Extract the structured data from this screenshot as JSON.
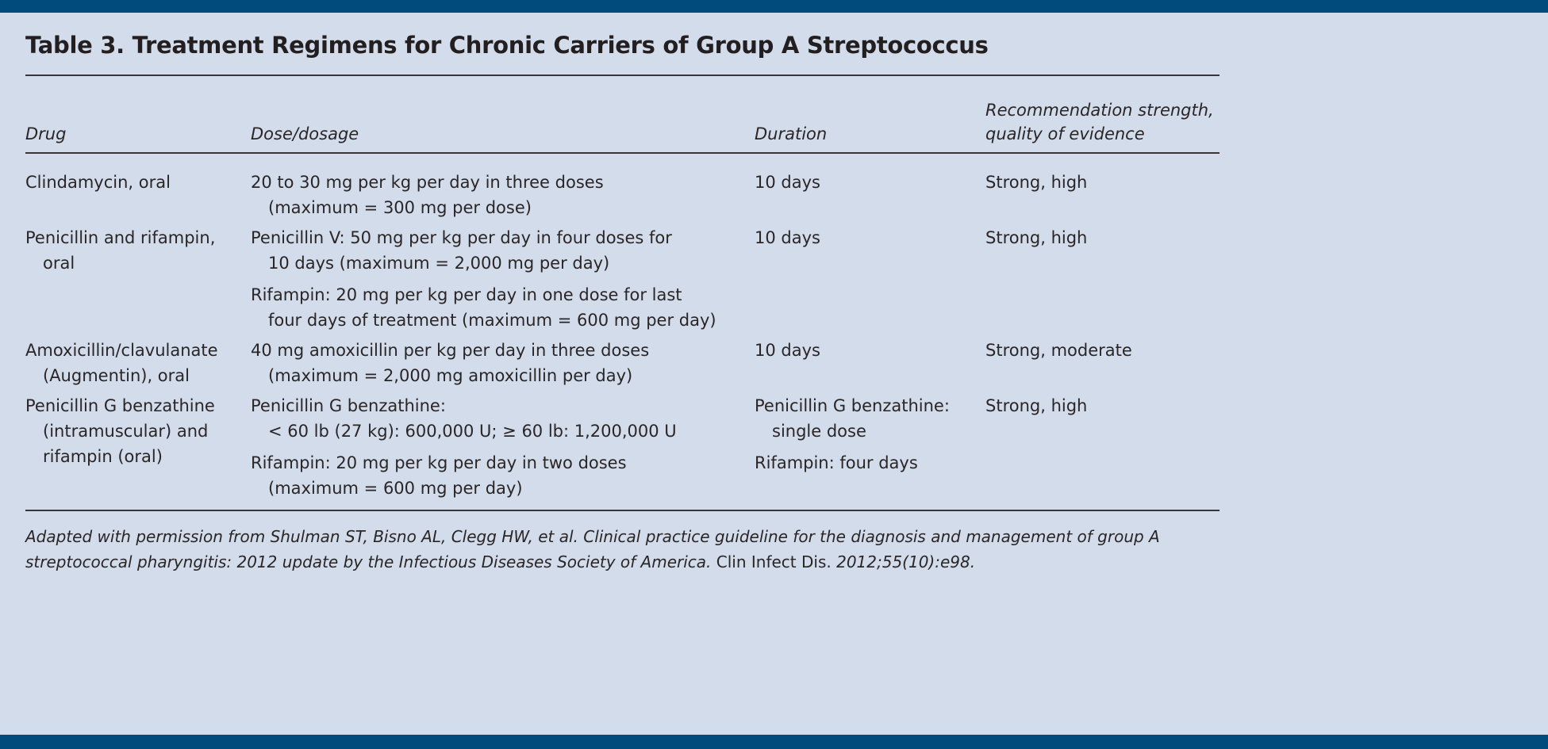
{
  "colors": {
    "band": "#004a7c",
    "background": "#d3dcea",
    "text": "#231f20"
  },
  "title": "Table 3. Treatment Regimens for Chronic Carriers of Group A Streptococcus",
  "headers": {
    "drug": "Drug",
    "dose": "Dose/dosage",
    "duration": "Duration",
    "strength_line1": "Recommendation strength,",
    "strength_line2": "quality of evidence"
  },
  "rows": [
    {
      "drug": [
        [
          "Clindamycin, oral"
        ]
      ],
      "dose": [
        [
          "20 to 30 mg per kg per day in three doses",
          "(maximum = 300 mg per dose)"
        ]
      ],
      "duration": [
        [
          "10 days"
        ]
      ],
      "strength": [
        [
          "Strong, high"
        ]
      ]
    },
    {
      "drug": [
        [
          "Penicillin and rifampin,",
          "oral"
        ]
      ],
      "dose": [
        [
          "Penicillin V: 50 mg per kg per day in four doses for",
          "10 days (maximum = 2,000 mg per day)"
        ],
        [
          "Rifampin: 20 mg per kg per day in one dose for last",
          "four days of treatment (maximum = 600 mg per day)"
        ]
      ],
      "duration": [
        [
          "10 days"
        ]
      ],
      "strength": [
        [
          "Strong, high"
        ]
      ]
    },
    {
      "drug": [
        [
          "Amoxicillin/clavulanate",
          "(Augmentin), oral"
        ]
      ],
      "dose": [
        [
          "40 mg amoxicillin per kg per day in three doses",
          "(maximum = 2,000 mg amoxicillin per day)"
        ]
      ],
      "duration": [
        [
          "10 days"
        ]
      ],
      "strength": [
        [
          "Strong, moderate"
        ]
      ]
    },
    {
      "drug": [
        [
          "Penicillin G benzathine",
          "(intramuscular) and",
          "rifampin (oral)"
        ]
      ],
      "dose": [
        [
          "Penicillin G benzathine:",
          "< 60 lb (27 kg): 600,000 U; ≥ 60 lb: 1,200,000 U"
        ],
        [
          "Rifampin: 20 mg per kg per day in two doses",
          "(maximum = 600 mg per day)"
        ]
      ],
      "duration": [
        [
          "Penicillin G benzathine:",
          "single dose"
        ],
        [
          "Rifampin: four days"
        ]
      ],
      "strength": [
        [
          "Strong, high"
        ]
      ]
    }
  ],
  "footnote": {
    "line1": "Adapted with permission from Shulman ST, Bisno AL, Clegg HW, et al. Clinical practice guideline for the diagnosis and management of group A",
    "line2a": "streptococcal pharyngitis: 2012 update by the Infectious Diseases Society of America.",
    "journal": " Clin Infect Dis.",
    "line2b": " 2012;55(10):e98."
  }
}
